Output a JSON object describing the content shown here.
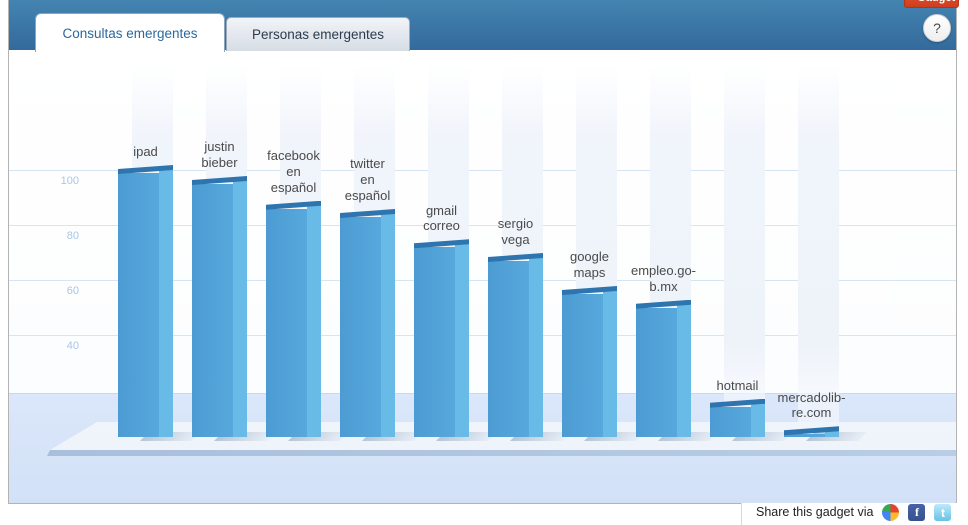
{
  "gadget_button": {
    "label": "+ Gadget",
    "color": "#d9452a"
  },
  "header": {
    "bg_top": "#4484b1",
    "bg_bottom": "#336a9c",
    "tabs": [
      {
        "label": "Consultas emergentes",
        "active": true
      },
      {
        "label": "Personas emergentes",
        "active": false
      }
    ],
    "help_button": {
      "label": "?"
    }
  },
  "share": {
    "label": "Share this gadget via",
    "icons": [
      {
        "name": "buzz-icon"
      },
      {
        "name": "facebook-icon",
        "letter": "f"
      },
      {
        "name": "twitter-icon",
        "letter": "t"
      }
    ]
  },
  "chart_data": {
    "type": "bar",
    "style": "3d-column",
    "title": "Consultas emergentes",
    "categories": [
      "ipad",
      "justin bieber",
      "facebook en español",
      "twitter en español",
      "gmail correo",
      "sergio vega",
      "google maps",
      "empleo.gob.mx",
      "hotmail",
      "mercadolibre.com"
    ],
    "labels_display": [
      "ipad",
      "justin\nbieber",
      "facebook\nen\nespañol",
      "twitter\nen\nespañol",
      "gmail\ncorreo",
      "sergio\nvega",
      "google\nmaps",
      "empleo.go-\nb.mx",
      "hotmail",
      "mercadolib-\nre.com"
    ],
    "values": [
      100,
      96,
      87,
      84,
      73,
      68,
      56,
      51,
      15,
      5
    ],
    "yticks": [
      100,
      80,
      60,
      40
    ],
    "ylim": [
      0,
      110
    ],
    "grid": true,
    "legend": "none",
    "xlabel": "",
    "ylabel": "",
    "bar_front_color_left": "#4c9cd3",
    "bar_front_color_right": "#57a8dc",
    "bar_side_color": "#69bbe7",
    "bar_top_color": "#2e74ae",
    "tick_label_color": "#a9c6e8",
    "gridline_color": "#d7e4f3"
  }
}
